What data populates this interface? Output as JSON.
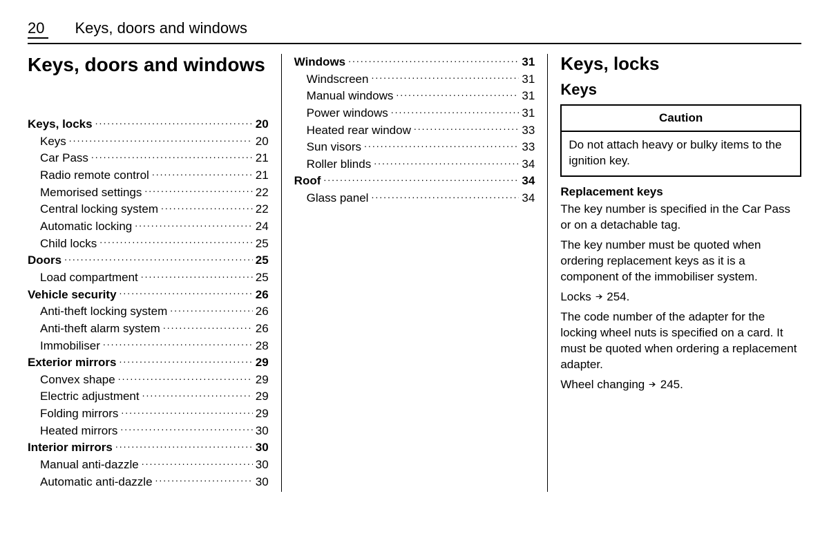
{
  "header": {
    "page_number": "20",
    "running_title": "Keys, doors and windows"
  },
  "col1": {
    "chapter_title": "Keys, doors and windows",
    "toc": [
      {
        "label": "Keys, locks",
        "page": "20",
        "group": true
      },
      {
        "label": "Keys",
        "page": "20",
        "indent": true
      },
      {
        "label": "Car Pass",
        "page": "21",
        "indent": true
      },
      {
        "label": "Radio remote control",
        "page": "21",
        "indent": true
      },
      {
        "label": "Memorised settings",
        "page": "22",
        "indent": true
      },
      {
        "label": "Central locking system",
        "page": "22",
        "indent": true
      },
      {
        "label": "Automatic locking",
        "page": "24",
        "indent": true
      },
      {
        "label": "Child locks",
        "page": "25",
        "indent": true
      },
      {
        "label": "Doors",
        "page": "25",
        "group": true
      },
      {
        "label": "Load compartment",
        "page": "25",
        "indent": true
      },
      {
        "label": "Vehicle security",
        "page": "26",
        "group": true
      },
      {
        "label": "Anti-theft locking system",
        "page": "26",
        "indent": true
      },
      {
        "label": "Anti-theft alarm system",
        "page": "26",
        "indent": true
      },
      {
        "label": "Immobiliser",
        "page": "28",
        "indent": true
      },
      {
        "label": "Exterior mirrors",
        "page": "29",
        "group": true
      },
      {
        "label": "Convex shape",
        "page": "29",
        "indent": true
      },
      {
        "label": "Electric adjustment",
        "page": "29",
        "indent": true
      },
      {
        "label": "Folding mirrors",
        "page": "29",
        "indent": true
      },
      {
        "label": "Heated mirrors",
        "page": "30",
        "indent": true
      },
      {
        "label": "Interior mirrors",
        "page": "30",
        "group": true
      },
      {
        "label": "Manual anti-dazzle",
        "page": "30",
        "indent": true
      },
      {
        "label": "Automatic anti-dazzle",
        "page": "30",
        "indent": true
      }
    ]
  },
  "col2": {
    "toc": [
      {
        "label": "Windows",
        "page": "31",
        "group": true
      },
      {
        "label": "Windscreen",
        "page": "31",
        "indent": true
      },
      {
        "label": "Manual windows",
        "page": "31",
        "indent": true
      },
      {
        "label": "Power windows",
        "page": "31",
        "indent": true
      },
      {
        "label": "Heated rear window",
        "page": "33",
        "indent": true
      },
      {
        "label": "Sun visors",
        "page": "33",
        "indent": true
      },
      {
        "label": "Roller blinds",
        "page": "34",
        "indent": true
      },
      {
        "label": "Roof",
        "page": "34",
        "group": true
      },
      {
        "label": "Glass panel",
        "page": "34",
        "indent": true
      }
    ]
  },
  "col3": {
    "section_title": "Keys, locks",
    "sub_title": "Keys",
    "caution": {
      "head": "Caution",
      "body": "Do not attach heavy or bulky items to the ignition key."
    },
    "replacement_heading": "Replacement keys",
    "paras": [
      "The key number is specified in the Car Pass or on a detachable tag.",
      "The key number must be quoted when ordering replacement keys as it is a component of the immobiliser system."
    ],
    "locks_ref_text": "Locks",
    "locks_ref_page": "254.",
    "para_after": "The code number of the adapter for the locking wheel nuts is specified on a card. It must be quoted when ordering a replacement adapter.",
    "wheel_ref_text": "Wheel changing",
    "wheel_ref_page": "245."
  },
  "style": {
    "colors": {
      "text": "#000000",
      "background": "#ffffff",
      "rule": "#000000"
    },
    "fonts": {
      "body_size_pt": 12,
      "chapter_title_pt": 21,
      "section_title_pt": 19,
      "sub_title_pt": 16
    }
  }
}
